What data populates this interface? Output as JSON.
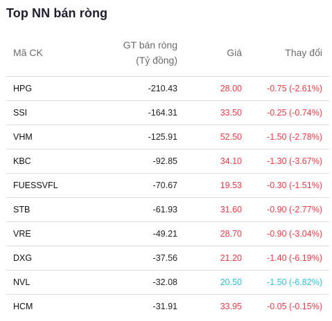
{
  "title": "Top NN bán ròng",
  "columns": {
    "code": "Mã CK",
    "value_line1": "GT bán ròng",
    "value_line2": "(Tỷ đồng)",
    "price": "Giá",
    "change": "Thay đổi"
  },
  "colors": {
    "down": "#f23645",
    "floor": "#26c6da"
  },
  "rows": [
    {
      "code": "HPG",
      "value": "-210.43",
      "price": "28.00",
      "change": "-0.75 (-2.61%)",
      "status": "down"
    },
    {
      "code": "SSI",
      "value": "-164.31",
      "price": "33.50",
      "change": "-0.25 (-0.74%)",
      "status": "down"
    },
    {
      "code": "VHM",
      "value": "-125.91",
      "price": "52.50",
      "change": "-1.50 (-2.78%)",
      "status": "down"
    },
    {
      "code": "KBC",
      "value": "-92.85",
      "price": "34.10",
      "change": "-1.30 (-3.67%)",
      "status": "down"
    },
    {
      "code": "FUESSVFL",
      "value": "-70.67",
      "price": "19.53",
      "change": "-0.30 (-1.51%)",
      "status": "down"
    },
    {
      "code": "STB",
      "value": "-61.93",
      "price": "31.60",
      "change": "-0.90 (-2.77%)",
      "status": "down"
    },
    {
      "code": "VRE",
      "value": "-49.21",
      "price": "28.70",
      "change": "-0.90 (-3.04%)",
      "status": "down"
    },
    {
      "code": "DXG",
      "value": "-37.56",
      "price": "21.20",
      "change": "-1.40 (-6.19%)",
      "status": "down"
    },
    {
      "code": "NVL",
      "value": "-32.08",
      "price": "20.50",
      "change": "-1.50 (-6.82%)",
      "status": "floor"
    },
    {
      "code": "HCM",
      "value": "-31.91",
      "price": "33.95",
      "change": "-0.05 (-0.15%)",
      "status": "down"
    }
  ]
}
